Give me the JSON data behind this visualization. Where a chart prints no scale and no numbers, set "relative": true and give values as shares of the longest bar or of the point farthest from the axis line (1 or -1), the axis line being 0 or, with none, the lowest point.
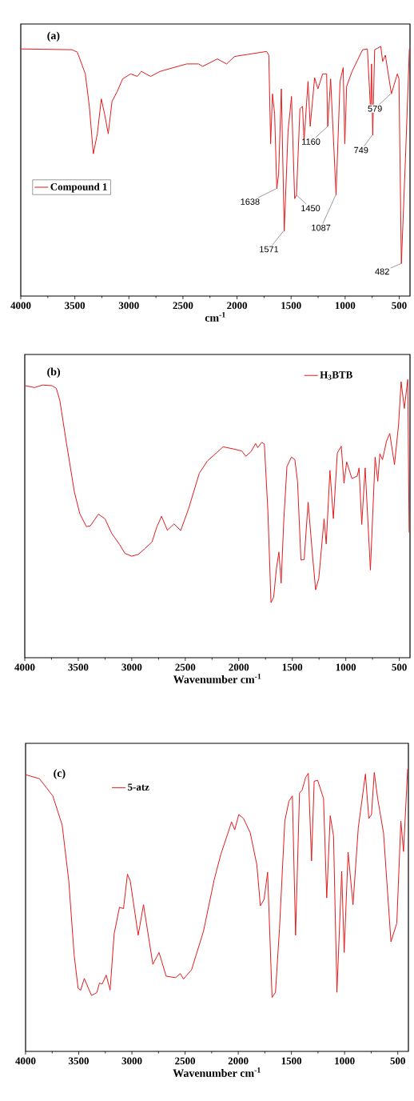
{
  "chart_data": [
    {
      "type": "line",
      "title": "(a)",
      "xlabel": "cm$^{-1}$",
      "relative": true,
      "legend": "left",
      "xlim": [
        4000,
        400
      ],
      "xticks": [
        4000,
        3500,
        3000,
        2500,
        2000,
        1500,
        1000,
        500
      ],
      "x": [
        4000,
        3526,
        3477,
        3403,
        3366,
        3329,
        3292,
        3255,
        3225,
        3191,
        3156,
        3107,
        3058,
        2984,
        2922,
        2885,
        2799,
        2712,
        2466,
        2355,
        2318,
        2182,
        2096,
        2022,
        1726,
        1706,
        1689,
        1672,
        1652,
        1632,
        1615,
        1590,
        1563,
        1528,
        1496,
        1467,
        1450,
        1418,
        1394,
        1380,
        1343,
        1323,
        1282,
        1252,
        1208,
        1171,
        1161,
        1134,
        1084,
        1047,
        1018,
        1003,
        986,
        936,
        838,
        794,
        764,
        756,
        745,
        727,
        670,
        653,
        628,
        572,
        517,
        502,
        480,
        442,
        406
      ],
      "series": [
        {
          "name": "Compound 1",
          "color": "#e31a1c",
          "values": [
            0.99,
            0.987,
            0.977,
            0.89,
            0.76,
            0.57,
            0.65,
            0.79,
            0.73,
            0.65,
            0.78,
            0.82,
            0.87,
            0.89,
            0.88,
            0.9,
            0.88,
            0.9,
            0.93,
            0.93,
            0.92,
            0.95,
            0.93,
            0.96,
            0.98,
            0.965,
            0.61,
            0.81,
            0.73,
            0.43,
            0.49,
            0.83,
            0.26,
            0.66,
            0.8,
            0.39,
            0.405,
            0.75,
            0.76,
            0.62,
            0.86,
            0.68,
            0.875,
            0.83,
            0.89,
            0.89,
            0.68,
            0.87,
            0.405,
            0.86,
            0.915,
            0.61,
            0.84,
            0.9,
            0.987,
            0.99,
            0.74,
            0.93,
            0.645,
            0.987,
            1.0,
            0.94,
            0.965,
            0.81,
            0.89,
            0.87,
            0.13,
            0.55,
            0.99
          ]
        }
      ],
      "annotations": [
        {
          "text": "1638",
          "x": 1638,
          "y": 0.43
        },
        {
          "text": "1571",
          "x": 1571,
          "y": 0.26
        },
        {
          "text": "1450",
          "x": 1450,
          "y": 0.405
        },
        {
          "text": "1160",
          "x": 1160,
          "y": 0.68
        },
        {
          "text": "1087",
          "x": 1087,
          "y": 0.405
        },
        {
          "text": "749",
          "x": 749,
          "y": 0.645
        },
        {
          "text": "579",
          "x": 579,
          "y": 0.81
        },
        {
          "text": "482",
          "x": 482,
          "y": 0.13
        }
      ]
    },
    {
      "type": "line",
      "title": "(b)",
      "xlabel": "Wavenumber cm$^{-1}$",
      "relative": true,
      "legend": "top right",
      "xlim": [
        4000,
        400
      ],
      "xticks": [
        4000,
        3500,
        3000,
        2500,
        2000,
        1500,
        1000,
        500
      ],
      "x": [
        4000,
        3908,
        3834,
        3747,
        3705,
        3672,
        3610,
        3536,
        3486,
        3424,
        3387,
        3312,
        3250,
        3188,
        3114,
        3064,
        3002,
        2940,
        2878,
        2811,
        2766,
        2722,
        2667,
        2605,
        2543,
        2468,
        2369,
        2294,
        2146,
        2046,
        1972,
        1934,
        1885,
        1843,
        1823,
        1786,
        1761,
        1728,
        1699,
        1674,
        1649,
        1625,
        1604,
        1580,
        1550,
        1508,
        1476,
        1451,
        1419,
        1389,
        1352,
        1314,
        1282,
        1252,
        1203,
        1183,
        1148,
        1116,
        1079,
        1042,
        1017,
        992,
        943,
        893,
        876,
        851,
        819,
        770,
        726,
        701,
        682,
        657,
        619,
        589,
        545,
        507,
        483,
        453,
        421,
        408
      ],
      "series": [
        {
          "name": "H$_{3}$BTB",
          "color": "#e31a1c",
          "values": [
            0.978,
            0.971,
            0.98,
            0.978,
            0.968,
            0.924,
            0.77,
            0.595,
            0.518,
            0.471,
            0.474,
            0.516,
            0.499,
            0.447,
            0.407,
            0.375,
            0.365,
            0.371,
            0.392,
            0.416,
            0.47,
            0.508,
            0.458,
            0.481,
            0.457,
            0.537,
            0.663,
            0.707,
            0.758,
            0.75,
            0.743,
            0.724,
            0.741,
            0.77,
            0.755,
            0.774,
            0.768,
            0.527,
            0.198,
            0.218,
            0.319,
            0.38,
            0.268,
            0.489,
            0.687,
            0.721,
            0.712,
            0.634,
            0.351,
            0.353,
            0.559,
            0.382,
            0.244,
            0.286,
            0.499,
            0.409,
            0.673,
            0.5,
            0.736,
            0.76,
            0.627,
            0.704,
            0.644,
            0.653,
            0.682,
            0.479,
            0.682,
            0.315,
            0.721,
            0.634,
            0.733,
            0.712,
            0.779,
            0.806,
            0.694,
            0.837,
            0.992,
            0.896,
            1.0,
            0.45
          ]
        }
      ]
    },
    {
      "type": "line",
      "title": "(c)",
      "xlabel": "Wavenumber cm$^{-1}$",
      "relative": true,
      "legend": "top left",
      "xlim": [
        4000,
        400
      ],
      "xticks": [
        4000,
        3500,
        3000,
        2500,
        2000,
        1500,
        1000,
        500
      ],
      "x": [
        4000,
        3870,
        3744,
        3656,
        3594,
        3543,
        3506,
        3481,
        3448,
        3380,
        3330,
        3305,
        3280,
        3242,
        3205,
        3167,
        3117,
        3079,
        3042,
        3016,
        2941,
        2891,
        2803,
        2745,
        2678,
        2590,
        2545,
        2515,
        2439,
        2327,
        2226,
        2163,
        2101,
        2063,
        2033,
        1995,
        1950,
        1887,
        1825,
        1792,
        1757,
        1724,
        1682,
        1650,
        1612,
        1562,
        1524,
        1491,
        1461,
        1424,
        1399,
        1366,
        1341,
        1311,
        1286,
        1253,
        1198,
        1168,
        1135,
        1104,
        1072,
        1027,
        1004,
        967,
        921,
        871,
        804,
        772,
        747,
        721,
        689,
        634,
        564,
        509,
        471,
        446,
        407
      ],
      "series": [
        {
          "name": "5-atz",
          "color": "#e31a1c",
          "values": [
            0.979,
            0.965,
            0.904,
            0.801,
            0.604,
            0.341,
            0.223,
            0.217,
            0.258,
            0.198,
            0.208,
            0.242,
            0.238,
            0.27,
            0.217,
            0.416,
            0.51,
            0.505,
            0.627,
            0.604,
            0.411,
            0.519,
            0.308,
            0.35,
            0.266,
            0.261,
            0.275,
            0.256,
            0.289,
            0.425,
            0.608,
            0.698,
            0.768,
            0.812,
            0.784,
            0.838,
            0.824,
            0.773,
            0.66,
            0.515,
            0.538,
            0.634,
            0.191,
            0.209,
            0.435,
            0.815,
            0.885,
            0.904,
            0.411,
            0.914,
            0.925,
            0.97,
            0.984,
            0.674,
            0.956,
            0.959,
            0.895,
            0.543,
            0.834,
            0.763,
            0.209,
            0.637,
            0.35,
            0.705,
            0.519,
            0.792,
            0.981,
            0.824,
            0.838,
            0.987,
            0.895,
            0.773,
            0.388,
            0.454,
            0.815,
            0.707,
            1.0
          ]
        }
      ]
    }
  ]
}
